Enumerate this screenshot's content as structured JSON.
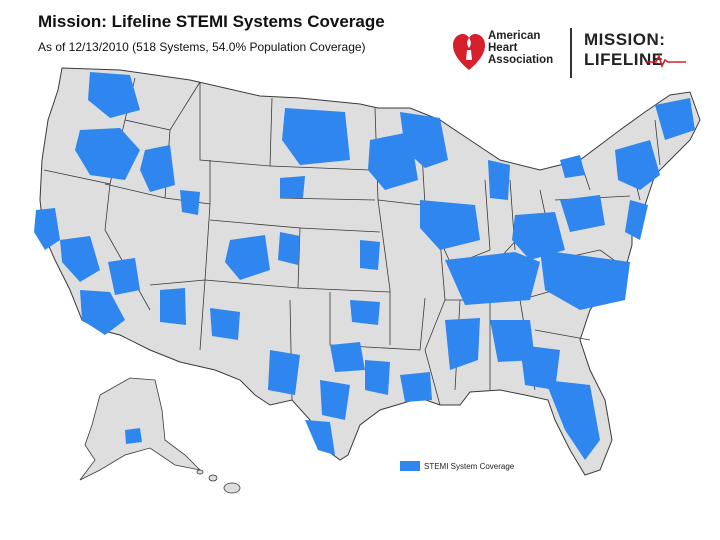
{
  "header": {
    "title": "Mission: Lifeline STEMI Systems Coverage",
    "subtitle": "As of 12/13/2010 (518 Systems, 54.0% Population Coverage)"
  },
  "logos": {
    "aha_lines": [
      "American",
      "Heart",
      "Association"
    ],
    "mission_lifeline_lines": [
      "MISSION:",
      "LIFELINE"
    ]
  },
  "legend": {
    "label": "STEMI System Coverage"
  },
  "colors": {
    "land": "#dedede",
    "border": "#3a3a3a",
    "coverage": "#2e86ee",
    "aha_red": "#d6202b"
  }
}
